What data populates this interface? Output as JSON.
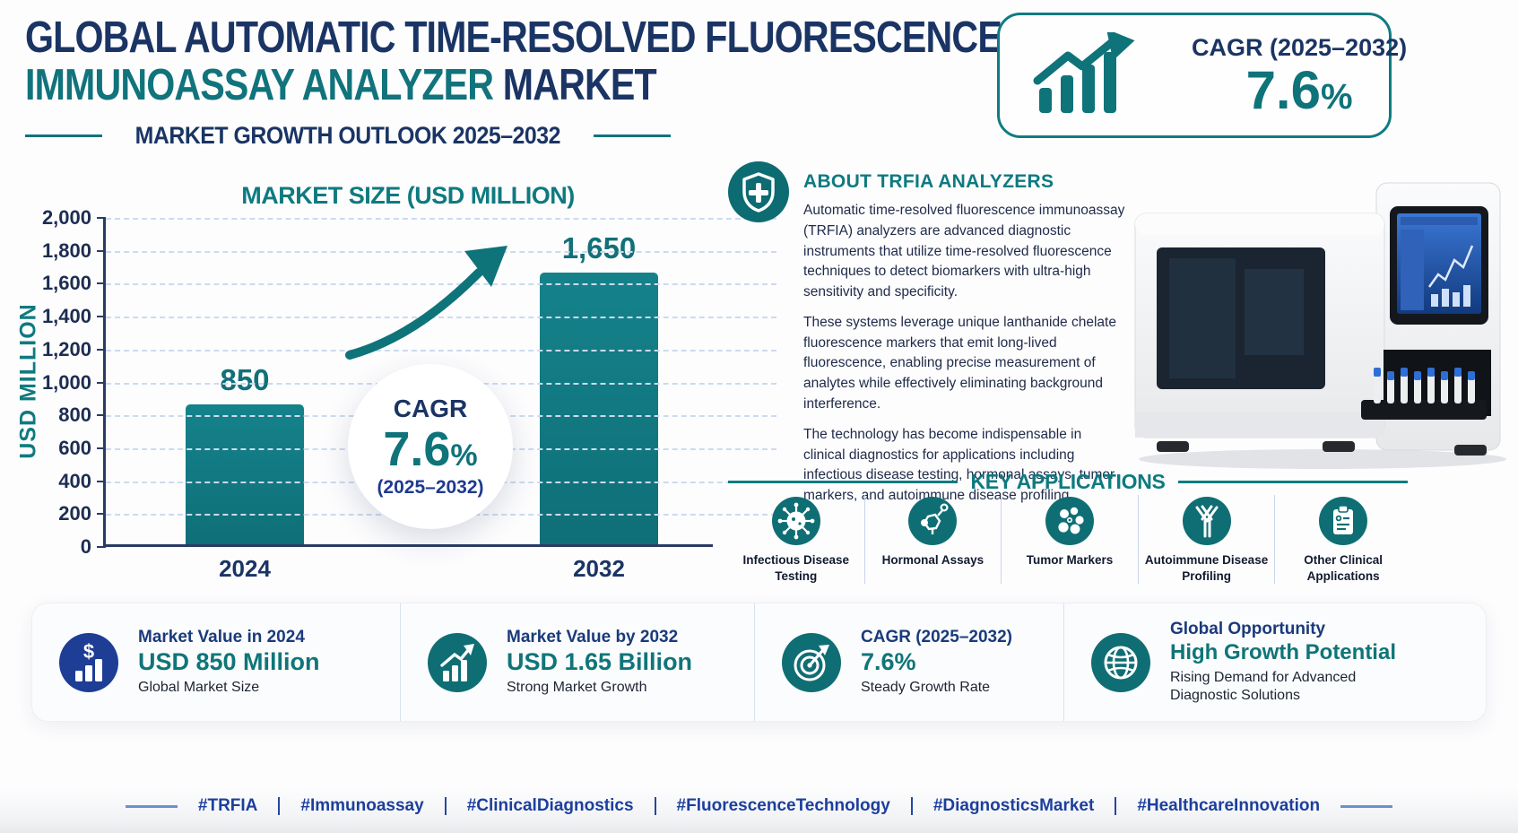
{
  "colors": {
    "navy": "#1a3464",
    "teal": "#0f757d",
    "bar_teal": "#107079",
    "royal_blue": "#1e3d94",
    "gridline": "#ccdaf0",
    "hashtag_blue": "#1c3f9c"
  },
  "header": {
    "title_line1": "GLOBAL AUTOMATIC TIME-RESOLVED FLUORESCENCE",
    "title_line2_teal": "IMMUNOASSAY ANALYZER",
    "title_line2_navy": " MARKET",
    "subtitle": "MARKET GROWTH OUTLOOK 2025–2032"
  },
  "cagr_badge": {
    "icon": "growth-bars-arrow-icon",
    "label": "CAGR (2025–2032)",
    "value": "7.6",
    "percent_sign": "%"
  },
  "chart_data": {
    "type": "bar",
    "title": "MARKET SIZE (USD MILLION)",
    "ylabel": "USD MILLION",
    "xlabel": "",
    "categories": [
      "2024",
      "2032"
    ],
    "values": [
      850,
      1650
    ],
    "bar_labels": [
      "850",
      "1,650"
    ],
    "ylim": [
      0,
      2000
    ],
    "ytick_values": [
      0,
      200,
      400,
      600,
      800,
      1000,
      1200,
      1400,
      1600,
      1800,
      2000
    ],
    "ytick_labels": [
      "0",
      "200",
      "400",
      "600",
      "800",
      "1,000",
      "1,200",
      "1,400",
      "1,600",
      "1,800",
      "2,000"
    ],
    "grid": true,
    "legend": false,
    "bar_color": "#107079",
    "annotation": {
      "line1": "CAGR",
      "value": "7.6",
      "percent_sign": "%",
      "line3": "(2025–2032)"
    }
  },
  "about": {
    "icon": "shield-plus-icon",
    "heading": "ABOUT TRFIA ANALYZERS",
    "paragraphs": [
      "Automatic time-resolved fluorescence immunoassay (TRFIA) analyzers are advanced diagnostic instruments that utilize time-resolved fluorescence techniques to detect biomarkers with ultra-high sensitivity and specificity.",
      "These systems leverage unique lanthanide chelate fluorescence markers that emit long-lived fluorescence, enabling precise measurement of analytes while effectively eliminating background interference.",
      "The technology has become indispensable in clinical diagnostics for applications including infectious disease testing, hormonal assays, tumor markers, and autoimmune disease profiling."
    ]
  },
  "key_applications": {
    "heading": "KEY APPLICATIONS",
    "items": [
      {
        "icon": "virus-icon",
        "label": "Infectious Disease Testing"
      },
      {
        "icon": "molecule-icon",
        "label": "Hormonal Assays"
      },
      {
        "icon": "tumor-cells-icon",
        "label": "Tumor Markers"
      },
      {
        "icon": "antibody-icon",
        "label": "Autoimmune Disease Profiling"
      },
      {
        "icon": "clipboard-icon",
        "label": "Other Clinical Applications"
      }
    ]
  },
  "stats": [
    {
      "icon": "dollar-bars-icon",
      "icon_color": "#1e3d94",
      "icon_glyph": "$",
      "title": "Market Value in 2024",
      "value": "USD 850 Million",
      "caption": "Global Market Size"
    },
    {
      "icon": "growth-chart-icon",
      "icon_color": "#0f6e74",
      "title": "Market Value by 2032",
      "value": "USD 1.65 Billion",
      "caption": "Strong Market Growth"
    },
    {
      "icon": "target-arrow-icon",
      "icon_color": "#0f6e74",
      "title": "CAGR (2025–2032)",
      "value": "7.6%",
      "caption": "Steady Growth Rate"
    },
    {
      "icon": "globe-icon",
      "icon_color": "#0f6e74",
      "title": "Global Opportunity",
      "value": "High Growth Potential",
      "caption": "Rising Demand for Advanced Diagnostic Solutions"
    }
  ],
  "hashtags": [
    "#TRFIA",
    "#Immunoassay",
    "#ClinicalDiagnostics",
    "#FluorescenceTechnology",
    "#DiagnosticsMarket",
    "#HealthcareInnovation"
  ]
}
